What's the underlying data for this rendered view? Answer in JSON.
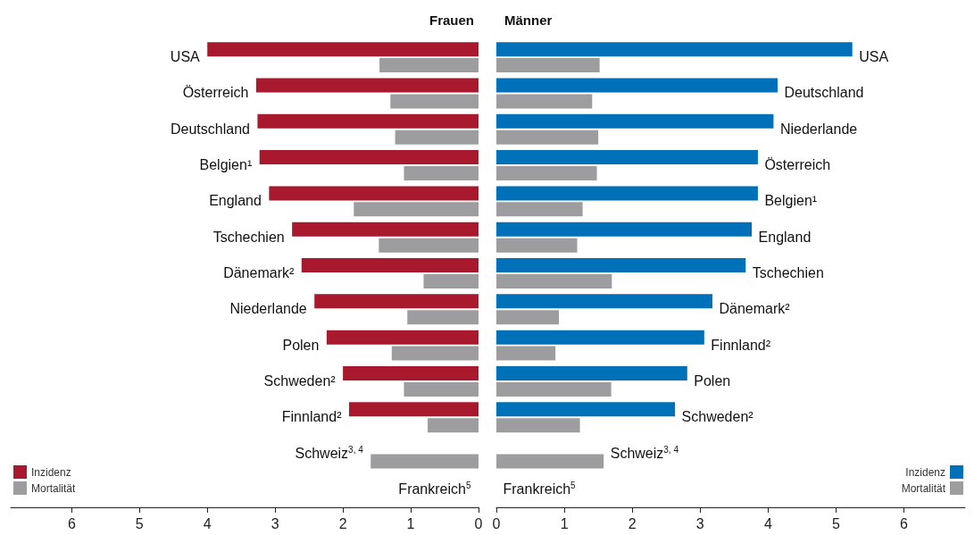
{
  "chart_data": [
    {
      "type": "bar",
      "orientation": "horizontal",
      "title": "Frauen",
      "legend": "bottom left",
      "categories": [
        "USA",
        "Österreich",
        "Deutschland",
        "Belgien¹",
        "England",
        "Tschechien",
        "Dänemark²",
        "Niederlande",
        "Polen",
        "Schweden²",
        "Finnland²",
        "Schweiz$^{3, 4}$",
        "Frankreich$^{5}$"
      ],
      "series": [
        {
          "name": "Inzidenz",
          "color": "#a8192e",
          "values": [
            4.0,
            3.28,
            3.26,
            3.23,
            3.09,
            2.75,
            2.61,
            2.42,
            2.24,
            2.0,
            1.91,
            null,
            null
          ]
        },
        {
          "name": "Mortalität",
          "color": "#9d9d9f",
          "values": [
            1.46,
            1.3,
            1.23,
            1.1,
            1.84,
            1.47,
            0.81,
            1.05,
            1.28,
            1.1,
            0.75,
            1.59,
            null
          ]
        }
      ],
      "xlim": [
        6.9,
        0
      ],
      "xticks": [
        0,
        1,
        2,
        3,
        4,
        5,
        6
      ]
    },
    {
      "type": "bar",
      "orientation": "horizontal",
      "title": "Männer",
      "legend": "bottom right",
      "categories": [
        "USA",
        "Deutschland",
        "Niederlande",
        "Österreich",
        "Belgien¹",
        "England",
        "Tschechien",
        "Dänemark²",
        "Finnland²",
        "Polen",
        "Schweden²",
        "Schweiz$^{3, 4}$",
        "Frankreich$^{5}$"
      ],
      "series": [
        {
          "name": "Inzidenz",
          "color": "#0070b8",
          "values": [
            5.24,
            4.14,
            4.08,
            3.85,
            3.85,
            3.76,
            3.67,
            3.18,
            3.06,
            2.81,
            2.63,
            null,
            null
          ]
        },
        {
          "name": "Mortalität",
          "color": "#9d9d9f",
          "values": [
            1.52,
            1.41,
            1.5,
            1.48,
            1.27,
            1.19,
            1.7,
            0.92,
            0.87,
            1.69,
            1.23,
            1.58,
            null
          ]
        }
      ],
      "xlim": [
        0,
        6.9
      ],
      "xticks": [
        0,
        1,
        2,
        3,
        4,
        5,
        6
      ]
    }
  ]
}
